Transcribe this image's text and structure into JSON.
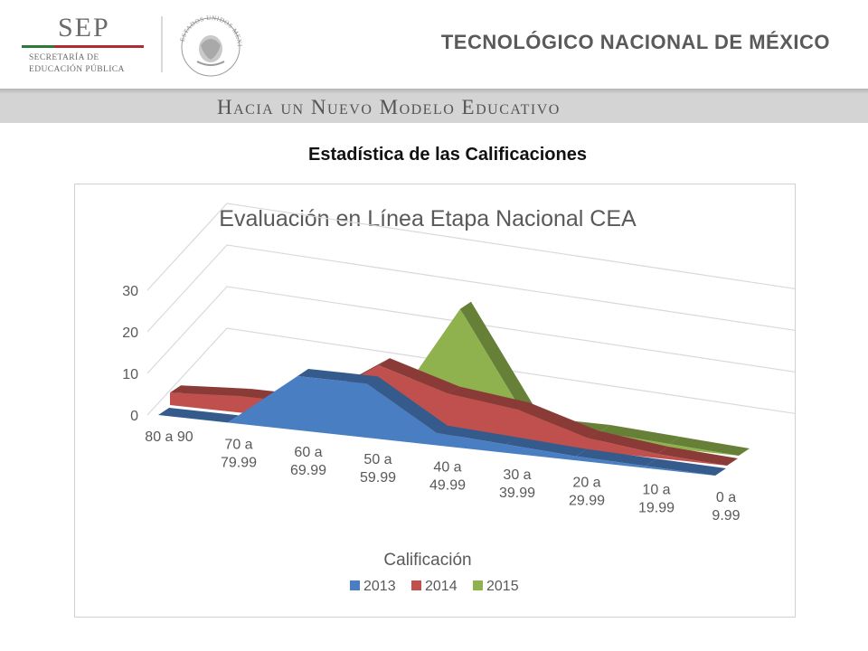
{
  "header": {
    "sep_word": "SEP",
    "sep_sub_line1": "SECRETARÍA DE",
    "sep_sub_line2": "EDUCACIÓN PÚBLICA",
    "seal_text": "ESTADOS UNIDOS MEXICANOS",
    "institution": "TECNOLÓGICO NACIONAL DE MÉXICO",
    "band_text": "Hacia un Nuevo Modelo Educativo",
    "colors": {
      "sep_red": "#b22a36",
      "sep_green": "#2f7a3a",
      "band": "#d4d4d4"
    }
  },
  "page_title": "Estadística de las Calificaciones",
  "chart_data": {
    "type": "area",
    "title": "Evaluación en Línea Etapa Nacional CEA",
    "xlabel": "Calificación",
    "ylabel": "",
    "categories": [
      [
        "80 a 90"
      ],
      [
        "70 a",
        "79.99"
      ],
      [
        "60 a",
        "69.99"
      ],
      [
        "50 a",
        "59.99"
      ],
      [
        "40 a",
        "49.99"
      ],
      [
        "30 a",
        "39.99"
      ],
      [
        "20 a",
        "29.99"
      ],
      [
        "10 a",
        "19.99"
      ],
      [
        "0 a",
        "9.99"
      ]
    ],
    "yticks": [
      "0",
      "10",
      "20",
      "30"
    ],
    "ylim": [
      0,
      30
    ],
    "grid": true,
    "legend": "bottom",
    "series": [
      {
        "name": "2013",
        "color": "#4a7ec2",
        "values": [
          0,
          0,
          13,
          13,
          3,
          2,
          1,
          0.5,
          0
        ]
      },
      {
        "name": "2014",
        "color": "#c0504d",
        "values": [
          3,
          4,
          4,
          15,
          10,
          8,
          3,
          1,
          0
        ]
      },
      {
        "name": "2015",
        "color": "#8fb24e",
        "values": [
          0,
          1,
          1,
          2,
          28,
          2,
          2,
          1,
          0
        ]
      }
    ]
  }
}
